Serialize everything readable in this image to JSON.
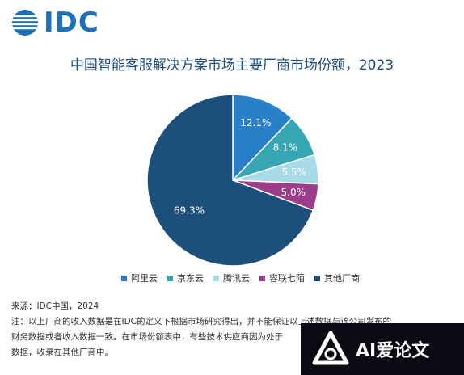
{
  "header": {
    "logo_text": "IDC",
    "title": "中国智能客服解决方案市场主要厂商市场份额，2023"
  },
  "chart_data": {
    "type": "pie",
    "title": "中国智能客服解决方案市场主要厂商市场份额，2023",
    "legend_position": "bottom",
    "slices": [
      {
        "name": "阿里云",
        "value": 12.1,
        "label": "12.1%",
        "color": "#2a7fc9"
      },
      {
        "name": "京东云",
        "value": 8.1,
        "label": "8.1%",
        "color": "#36a6b5"
      },
      {
        "name": "腾讯云",
        "value": 5.5,
        "label": "5.5%",
        "color": "#a6dbe8"
      },
      {
        "name": "容联七陌",
        "value": 5.0,
        "label": "5.0%",
        "color": "#9c3d8a"
      },
      {
        "name": "其他厂商",
        "value": 69.3,
        "label": "69.3%",
        "color": "#1d4f7c"
      }
    ]
  },
  "notes": {
    "source": "来源：IDC中国，2024",
    "line1": "注：以上厂商的收入数据是在IDC的定义下根据市场研究得出，并不能保证以上述数据与该公司发布的",
    "line2": "财务数据或者收入数据一致。在市场份额表中，有些技术供应商因为处于",
    "line3": "数据，收录在其他厂商中。"
  },
  "watermark": {
    "text": "AI爱论文",
    "icon": "ai-logo-icon"
  }
}
